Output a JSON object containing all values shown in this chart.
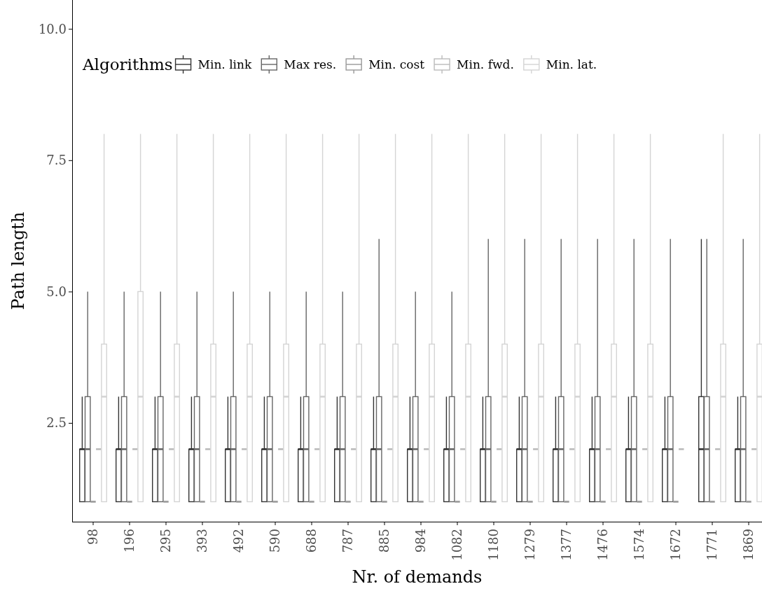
{
  "chart_data": {
    "type": "box",
    "xlabel": "Nr. of demands",
    "ylabel": "Path length",
    "legend_title": "Algorithms",
    "legend": "top",
    "grid": false,
    "categories": [
      "98",
      "196",
      "295",
      "393",
      "492",
      "590",
      "688",
      "787",
      "885",
      "984",
      "1082",
      "1180",
      "1279",
      "1377",
      "1476",
      "1574",
      "1672",
      "1771",
      "1869"
    ],
    "ylim": [
      0.62,
      10.55
    ],
    "yticks": [
      {
        "value": 2.5,
        "label": "2.5"
      },
      {
        "value": 5,
        "label": "5.0"
      },
      {
        "value": 7.5,
        "label": "7.5"
      },
      {
        "value": 10,
        "label": "10.0"
      }
    ],
    "series": [
      {
        "name": "Min. link",
        "color": "#333333",
        "boxes": [
          {
            "low": 1,
            "q1": 1,
            "median": 2,
            "q3": 2,
            "high": 3
          },
          {
            "low": 1,
            "q1": 1,
            "median": 2,
            "q3": 2,
            "high": 3
          },
          {
            "low": 1,
            "q1": 1,
            "median": 2,
            "q3": 2,
            "high": 3
          },
          {
            "low": 1,
            "q1": 1,
            "median": 2,
            "q3": 2,
            "high": 3
          },
          {
            "low": 1,
            "q1": 1,
            "median": 2,
            "q3": 2,
            "high": 3
          },
          {
            "low": 1,
            "q1": 1,
            "median": 2,
            "q3": 2,
            "high": 3
          },
          {
            "low": 1,
            "q1": 1,
            "median": 2,
            "q3": 2,
            "high": 3
          },
          {
            "low": 1,
            "q1": 1,
            "median": 2,
            "q3": 2,
            "high": 3
          },
          {
            "low": 1,
            "q1": 1,
            "median": 2,
            "q3": 2,
            "high": 3
          },
          {
            "low": 1,
            "q1": 1,
            "median": 2,
            "q3": 2,
            "high": 3
          },
          {
            "low": 1,
            "q1": 1,
            "median": 2,
            "q3": 2,
            "high": 3
          },
          {
            "low": 1,
            "q1": 1,
            "median": 2,
            "q3": 2,
            "high": 3
          },
          {
            "low": 1,
            "q1": 1,
            "median": 2,
            "q3": 2,
            "high": 3
          },
          {
            "low": 1,
            "q1": 1,
            "median": 2,
            "q3": 2,
            "high": 3
          },
          {
            "low": 1,
            "q1": 1,
            "median": 2,
            "q3": 2,
            "high": 3
          },
          {
            "low": 1,
            "q1": 1,
            "median": 2,
            "q3": 2,
            "high": 3
          },
          {
            "low": 1,
            "q1": 1,
            "median": 2,
            "q3": 2,
            "high": 3
          },
          {
            "low": 1,
            "q1": 1,
            "median": 2,
            "q3": 3,
            "high": 6
          },
          {
            "low": 1,
            "q1": 1,
            "median": 2,
            "q3": 2,
            "high": 3
          }
        ]
      },
      {
        "name": "Max res.",
        "color": "#666666",
        "boxes": [
          {
            "low": 1,
            "q1": 1,
            "median": 2,
            "q3": 3,
            "high": 5
          },
          {
            "low": 1,
            "q1": 1,
            "median": 2,
            "q3": 3,
            "high": 5
          },
          {
            "low": 1,
            "q1": 1,
            "median": 2,
            "q3": 3,
            "high": 5
          },
          {
            "low": 1,
            "q1": 1,
            "median": 2,
            "q3": 3,
            "high": 5
          },
          {
            "low": 1,
            "q1": 1,
            "median": 2,
            "q3": 3,
            "high": 5
          },
          {
            "low": 1,
            "q1": 1,
            "median": 2,
            "q3": 3,
            "high": 5
          },
          {
            "low": 1,
            "q1": 1,
            "median": 2,
            "q3": 3,
            "high": 5
          },
          {
            "low": 1,
            "q1": 1,
            "median": 2,
            "q3": 3,
            "high": 5
          },
          {
            "low": 1,
            "q1": 1,
            "median": 2,
            "q3": 3,
            "high": 6
          },
          {
            "low": 1,
            "q1": 1,
            "median": 2,
            "q3": 3,
            "high": 5
          },
          {
            "low": 1,
            "q1": 1,
            "median": 2,
            "q3": 3,
            "high": 5
          },
          {
            "low": 1,
            "q1": 1,
            "median": 2,
            "q3": 3,
            "high": 6
          },
          {
            "low": 1,
            "q1": 1,
            "median": 2,
            "q3": 3,
            "high": 6
          },
          {
            "low": 1,
            "q1": 1,
            "median": 2,
            "q3": 3,
            "high": 6
          },
          {
            "low": 1,
            "q1": 1,
            "median": 2,
            "q3": 3,
            "high": 6
          },
          {
            "low": 1,
            "q1": 1,
            "median": 2,
            "q3": 3,
            "high": 6
          },
          {
            "low": 1,
            "q1": 1,
            "median": 2,
            "q3": 3,
            "high": 6
          },
          {
            "low": 1,
            "q1": 1,
            "median": 2,
            "q3": 3,
            "high": 6
          },
          {
            "low": 1,
            "q1": 1,
            "median": 2,
            "q3": 3,
            "high": 6
          }
        ]
      },
      {
        "name": "Min. cost",
        "color": "#999999",
        "boxes": [
          {
            "low": 1,
            "q1": 1,
            "median": 1,
            "q3": 1,
            "high": 1
          },
          {
            "low": 1,
            "q1": 1,
            "median": 1,
            "q3": 1,
            "high": 1
          },
          {
            "low": 1,
            "q1": 1,
            "median": 1,
            "q3": 1,
            "high": 1
          },
          {
            "low": 1,
            "q1": 1,
            "median": 1,
            "q3": 1,
            "high": 1
          },
          {
            "low": 1,
            "q1": 1,
            "median": 1,
            "q3": 1,
            "high": 1
          },
          {
            "low": 1,
            "q1": 1,
            "median": 1,
            "q3": 1,
            "high": 1
          },
          {
            "low": 1,
            "q1": 1,
            "median": 1,
            "q3": 1,
            "high": 1
          },
          {
            "low": 1,
            "q1": 1,
            "median": 1,
            "q3": 1,
            "high": 1
          },
          {
            "low": 1,
            "q1": 1,
            "median": 1,
            "q3": 1,
            "high": 1
          },
          {
            "low": 1,
            "q1": 1,
            "median": 1,
            "q3": 1,
            "high": 1
          },
          {
            "low": 1,
            "q1": 1,
            "median": 1,
            "q3": 1,
            "high": 1
          },
          {
            "low": 1,
            "q1": 1,
            "median": 1,
            "q3": 1,
            "high": 1
          },
          {
            "low": 1,
            "q1": 1,
            "median": 1,
            "q3": 1,
            "high": 1
          },
          {
            "low": 1,
            "q1": 1,
            "median": 1,
            "q3": 1,
            "high": 1
          },
          {
            "low": 1,
            "q1": 1,
            "median": 1,
            "q3": 1,
            "high": 1
          },
          {
            "low": 1,
            "q1": 1,
            "median": 1,
            "q3": 1,
            "high": 1
          },
          {
            "low": 1,
            "q1": 1,
            "median": 1,
            "q3": 1,
            "high": 1
          },
          {
            "low": 1,
            "q1": 1,
            "median": 1,
            "q3": 1,
            "high": 1
          },
          {
            "low": 1,
            "q1": 1,
            "median": 1,
            "q3": 1,
            "high": 1
          }
        ]
      },
      {
        "name": "Min. fwd.",
        "color": "#bbbbbb",
        "boxes": [
          {
            "low": 2,
            "q1": 2,
            "median": 2,
            "q3": 2,
            "high": 2
          },
          {
            "low": 2,
            "q1": 2,
            "median": 2,
            "q3": 2,
            "high": 2
          },
          {
            "low": 2,
            "q1": 2,
            "median": 2,
            "q3": 2,
            "high": 2
          },
          {
            "low": 2,
            "q1": 2,
            "median": 2,
            "q3": 2,
            "high": 2
          },
          {
            "low": 2,
            "q1": 2,
            "median": 2,
            "q3": 2,
            "high": 2
          },
          {
            "low": 2,
            "q1": 2,
            "median": 2,
            "q3": 2,
            "high": 2
          },
          {
            "low": 2,
            "q1": 2,
            "median": 2,
            "q3": 2,
            "high": 2
          },
          {
            "low": 2,
            "q1": 2,
            "median": 2,
            "q3": 2,
            "high": 2
          },
          {
            "low": 2,
            "q1": 2,
            "median": 2,
            "q3": 2,
            "high": 2
          },
          {
            "low": 2,
            "q1": 2,
            "median": 2,
            "q3": 2,
            "high": 2
          },
          {
            "low": 2,
            "q1": 2,
            "median": 2,
            "q3": 2,
            "high": 2
          },
          {
            "low": 2,
            "q1": 2,
            "median": 2,
            "q3": 2,
            "high": 2
          },
          {
            "low": 2,
            "q1": 2,
            "median": 2,
            "q3": 2,
            "high": 2
          },
          {
            "low": 2,
            "q1": 2,
            "median": 2,
            "q3": 2,
            "high": 2
          },
          {
            "low": 2,
            "q1": 2,
            "median": 2,
            "q3": 2,
            "high": 2
          },
          {
            "low": 2,
            "q1": 2,
            "median": 2,
            "q3": 2,
            "high": 2
          },
          {
            "low": 2,
            "q1": 2,
            "median": 2,
            "q3": 2,
            "high": 2
          },
          {
            "low": 2,
            "q1": 2,
            "median": 2,
            "q3": 2,
            "high": 2
          },
          {
            "low": 2,
            "q1": 2,
            "median": 2,
            "q3": 2,
            "high": 2
          }
        ]
      },
      {
        "name": "Min. lat.",
        "color": "#d4d4d4",
        "boxes": [
          {
            "low": 1,
            "q1": 1,
            "median": 3,
            "q3": 4,
            "high": 8
          },
          {
            "low": 1,
            "q1": 1,
            "median": 3,
            "q3": 5,
            "high": 8
          },
          {
            "low": 1,
            "q1": 1,
            "median": 3,
            "q3": 4,
            "high": 8
          },
          {
            "low": 1,
            "q1": 1,
            "median": 3,
            "q3": 4,
            "high": 8
          },
          {
            "low": 1,
            "q1": 1,
            "median": 3,
            "q3": 4,
            "high": 8
          },
          {
            "low": 1,
            "q1": 1,
            "median": 3,
            "q3": 4,
            "high": 8
          },
          {
            "low": 1,
            "q1": 1,
            "median": 3,
            "q3": 4,
            "high": 8
          },
          {
            "low": 1,
            "q1": 1,
            "median": 3,
            "q3": 4,
            "high": 8
          },
          {
            "low": 1,
            "q1": 1,
            "median": 3,
            "q3": 4,
            "high": 8
          },
          {
            "low": 1,
            "q1": 1,
            "median": 3,
            "q3": 4,
            "high": 8
          },
          {
            "low": 1,
            "q1": 1,
            "median": 3,
            "q3": 4,
            "high": 8
          },
          {
            "low": 1,
            "q1": 1,
            "median": 3,
            "q3": 4,
            "high": 8
          },
          {
            "low": 1,
            "q1": 1,
            "median": 3,
            "q3": 4,
            "high": 8
          },
          {
            "low": 1,
            "q1": 1,
            "median": 3,
            "q3": 4,
            "high": 8
          },
          {
            "low": 1,
            "q1": 1,
            "median": 3,
            "q3": 4,
            "high": 8
          },
          {
            "low": 1,
            "q1": 1,
            "median": 3,
            "q3": 4,
            "high": 8
          },
          null,
          {
            "low": 1,
            "q1": 1,
            "median": 3,
            "q3": 4,
            "high": 8
          },
          {
            "low": 1,
            "q1": 1,
            "median": 3,
            "q3": 4,
            "high": 8
          }
        ]
      }
    ]
  }
}
